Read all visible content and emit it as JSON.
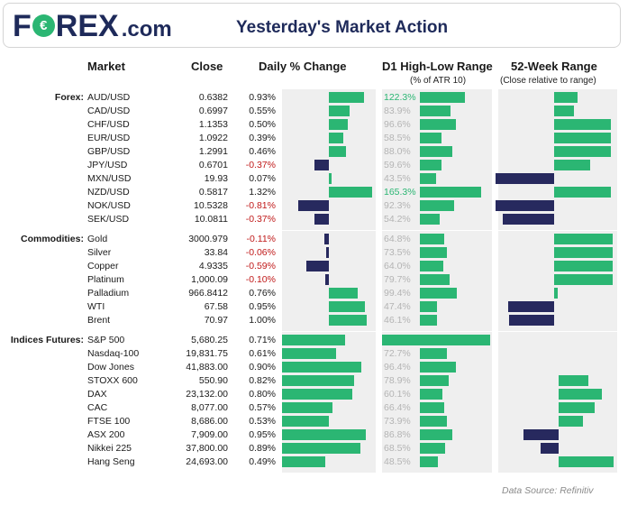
{
  "header": {
    "logo_pre": "F",
    "logo_coin": "€",
    "logo_post": "REX",
    "logo_domain": ".com",
    "title": "Yesterday's Market Action"
  },
  "columns": {
    "market": "Market",
    "close": "Close",
    "daily": "Daily % Change",
    "range": "D1 High-Low Range",
    "range_sub": "(% of ATR 10)",
    "week52": "52-Week Range",
    "week52_sub": "(Close relative to range)"
  },
  "footer": "Data Source: Refinitiv",
  "colors": {
    "green": "#2bb673",
    "navy": "#27295e",
    "negative_text": "#c01a1a",
    "muted_text": "#b4b4b4"
  },
  "chart_data": {
    "type": "table",
    "title": "Yesterday's Market Action",
    "axis": {
      "daily_pct_range": [
        -1.1,
        1.1
      ],
      "atr_pct_max": 190,
      "week52_range": [
        -1,
        1
      ]
    },
    "groups": [
      {
        "name": "Forex:",
        "rows": [
          {
            "market": "AUD/USD",
            "close": "0.6382",
            "change": "0.93%",
            "change_value": 0.93,
            "atr": "122.3%",
            "atr_value": 122.3,
            "week52": 0.4
          },
          {
            "market": "CAD/USD",
            "close": "0.6997",
            "change": "0.55%",
            "change_value": 0.55,
            "atr": "83.9%",
            "atr_value": 83.9,
            "week52": 0.33
          },
          {
            "market": "CHF/USD",
            "close": "1.1353",
            "change": "0.50%",
            "change_value": 0.5,
            "atr": "96.6%",
            "atr_value": 96.6,
            "week52": 0.95
          },
          {
            "market": "EUR/USD",
            "close": "1.0922",
            "change": "0.39%",
            "change_value": 0.39,
            "atr": "58.5%",
            "atr_value": 58.5,
            "week52": 0.95
          },
          {
            "market": "GBP/USD",
            "close": "1.2991",
            "change": "0.46%",
            "change_value": 0.46,
            "atr": "88.0%",
            "atr_value": 88.0,
            "week52": 0.95
          },
          {
            "market": "JPY/USD",
            "close": "0.6701",
            "change": "-0.37%",
            "change_value": -0.37,
            "atr": "59.6%",
            "atr_value": 59.6,
            "week52": 0.6
          },
          {
            "market": "MXN/USD",
            "close": "19.93",
            "change": "0.07%",
            "change_value": 0.07,
            "atr": "43.5%",
            "atr_value": 43.5,
            "week52": -0.98
          },
          {
            "market": "NZD/USD",
            "close": "0.5817",
            "change": "1.32%",
            "change_value": 1.32,
            "atr": "165.3%",
            "atr_value": 165.3,
            "week52": 0.95
          },
          {
            "market": "NOK/USD",
            "close": "10.5328",
            "change": "-0.81%",
            "change_value": -0.81,
            "atr": "92.3%",
            "atr_value": 92.3,
            "week52": -0.98
          },
          {
            "market": "SEK/USD",
            "close": "10.0811",
            "change": "-0.37%",
            "change_value": -0.37,
            "atr": "54.2%",
            "atr_value": 54.2,
            "week52": -0.87
          }
        ]
      },
      {
        "name": "Commodities:",
        "rows": [
          {
            "market": "Gold",
            "close": "3000.979",
            "change": "-0.11%",
            "change_value": -0.11,
            "atr": "64.8%",
            "atr_value": 64.8,
            "week52": 0.99
          },
          {
            "market": "Silver",
            "close": "33.84",
            "change": "-0.06%",
            "change_value": -0.06,
            "atr": "73.5%",
            "atr_value": 73.5,
            "week52": 0.99
          },
          {
            "market": "Copper",
            "close": "4.9335",
            "change": "-0.59%",
            "change_value": -0.59,
            "atr": "64.0%",
            "atr_value": 64.0,
            "week52": 0.99
          },
          {
            "market": "Platinum",
            "close": "1,000.09",
            "change": "-0.10%",
            "change_value": -0.1,
            "atr": "79.7%",
            "atr_value": 79.7,
            "week52": 0.99
          },
          {
            "market": "Palladium",
            "close": "966.8412",
            "change": "0.76%",
            "change_value": 0.76,
            "atr": "99.4%",
            "atr_value": 99.4,
            "week52": 0.06
          },
          {
            "market": "WTI",
            "close": "67.58",
            "change": "0.95%",
            "change_value": 0.95,
            "atr": "47.4%",
            "atr_value": 47.4,
            "week52": -0.78
          },
          {
            "market": "Brent",
            "close": "70.97",
            "change": "1.00%",
            "change_value": 1.0,
            "atr": "46.1%",
            "atr_value": 46.1,
            "week52": -0.76
          }
        ]
      },
      {
        "name": "Indices Futures:",
        "rows": [
          {
            "market": "S&P 500",
            "close": "5,680.25",
            "change": "0.71%",
            "change_value": 0.71,
            "atr": "",
            "atr_value": 210,
            "week52": 0
          },
          {
            "market": "Nasdaq-100",
            "close": "19,831.75",
            "change": "0.61%",
            "change_value": 0.61,
            "atr": "72.7%",
            "atr_value": 72.7,
            "week52": 0
          },
          {
            "market": "Dow Jones",
            "close": "41,883.00",
            "change": "0.90%",
            "change_value": 0.9,
            "atr": "96.4%",
            "atr_value": 96.4,
            "week52": 0
          },
          {
            "market": "STOXX 600",
            "close": "550.90",
            "change": "0.82%",
            "change_value": 0.82,
            "atr": "78.9%",
            "atr_value": 78.9,
            "week52": 0.53
          },
          {
            "market": "DAX",
            "close": "23,132.00",
            "change": "0.80%",
            "change_value": 0.8,
            "atr": "60.1%",
            "atr_value": 60.1,
            "week52": 0.77
          },
          {
            "market": "CAC",
            "close": "8,077.00",
            "change": "0.57%",
            "change_value": 0.57,
            "atr": "66.4%",
            "atr_value": 66.4,
            "week52": 0.65
          },
          {
            "market": "FTSE 100",
            "close": "8,686.00",
            "change": "0.53%",
            "change_value": 0.53,
            "atr": "73.9%",
            "atr_value": 73.9,
            "week52": 0.43
          },
          {
            "market": "ASX 200",
            "close": "7,909.00",
            "change": "0.95%",
            "change_value": 0.95,
            "atr": "86.8%",
            "atr_value": 86.8,
            "week52": -0.63
          },
          {
            "market": "Nikkei 225",
            "close": "37,800.00",
            "change": "0.89%",
            "change_value": 0.89,
            "atr": "68.5%",
            "atr_value": 68.5,
            "week52": -0.33
          },
          {
            "market": "Hang Seng",
            "close": "24,693.00",
            "change": "0.49%",
            "change_value": 0.49,
            "atr": "48.5%",
            "atr_value": 48.5,
            "week52": 0.99
          }
        ]
      }
    ]
  }
}
